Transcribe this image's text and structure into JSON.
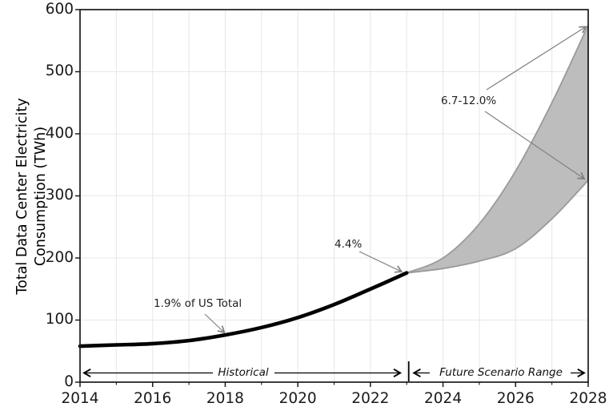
{
  "chart_data": {
    "type": "area",
    "title": "",
    "xlabel": "",
    "ylabel": "Total Data Center Electricity Consumption (TWh)",
    "ylabel_lines": [
      "Total Data Center Electricity",
      "Consumption (TWh)"
    ],
    "xlim": [
      2014,
      2028
    ],
    "ylim": [
      0,
      600
    ],
    "grid": "on",
    "legend_position": "none",
    "x_ticks": [
      2014,
      2016,
      2018,
      2020,
      2022,
      2024,
      2026,
      2028
    ],
    "x_tick_labels": [
      "2014",
      "2016",
      "2018",
      "2020",
      "2022",
      "2024",
      "2026",
      "2028"
    ],
    "y_ticks": [
      0,
      100,
      200,
      300,
      400,
      500,
      600
    ],
    "y_tick_labels": [
      "0",
      "100",
      "200",
      "300",
      "400",
      "500",
      "600"
    ],
    "series": [
      {
        "name": "historical",
        "type": "line",
        "color": "#000000",
        "x": [
          2014,
          2015,
          2016,
          2017,
          2018,
          2019,
          2020,
          2021,
          2022,
          2023
        ],
        "y": [
          58,
          60,
          62,
          67,
          76,
          88,
          104,
          125,
          150,
          176
        ]
      },
      {
        "name": "future-scenario-upper",
        "type": "line",
        "color": "#9a9a9a",
        "x": [
          2023,
          2024,
          2025,
          2026,
          2027,
          2028
        ],
        "y": [
          176,
          200,
          255,
          340,
          450,
          575
        ]
      },
      {
        "name": "future-scenario-lower",
        "type": "line",
        "color": "#9a9a9a",
        "x": [
          2023,
          2024,
          2025,
          2026,
          2027,
          2028
        ],
        "y": [
          176,
          183,
          195,
          215,
          263,
          325
        ]
      }
    ],
    "band": {
      "between": [
        "future-scenario-upper",
        "future-scenario-lower"
      ],
      "fill": "#bdbdbd",
      "edge": "#9a9a9a"
    },
    "point_annotations": [
      {
        "id": "pct-2018",
        "label": "1.9% of US Total",
        "targets": [
          {
            "x": 2018,
            "y": 80
          }
        ]
      },
      {
        "id": "pct-2023",
        "label": "4.4%",
        "targets": [
          {
            "x": 2023,
            "y": 178
          }
        ]
      },
      {
        "id": "pct-2028",
        "label": "6.7-12.0%",
        "targets": [
          {
            "x": 2028,
            "y": 575
          },
          {
            "x": 2028,
            "y": 325
          }
        ]
      }
    ],
    "span_annotations": [
      {
        "id": "historical-span",
        "label": "Historical",
        "from_x": 2014,
        "to_x": 2023
      },
      {
        "id": "future-span",
        "label": "Future Scenario Range",
        "from_x": 2023,
        "to_x": 2028
      }
    ]
  },
  "colors": {
    "background": "#ffffff",
    "spine": "#1a1a1a",
    "grid": "#e8e8e8",
    "historical_line": "#000000",
    "band_fill": "#bdbdbd",
    "band_edge": "#9a9a9a",
    "annotation_arrow": "#808080",
    "span_arrow": "#000000",
    "text": "#1a1a1a"
  }
}
